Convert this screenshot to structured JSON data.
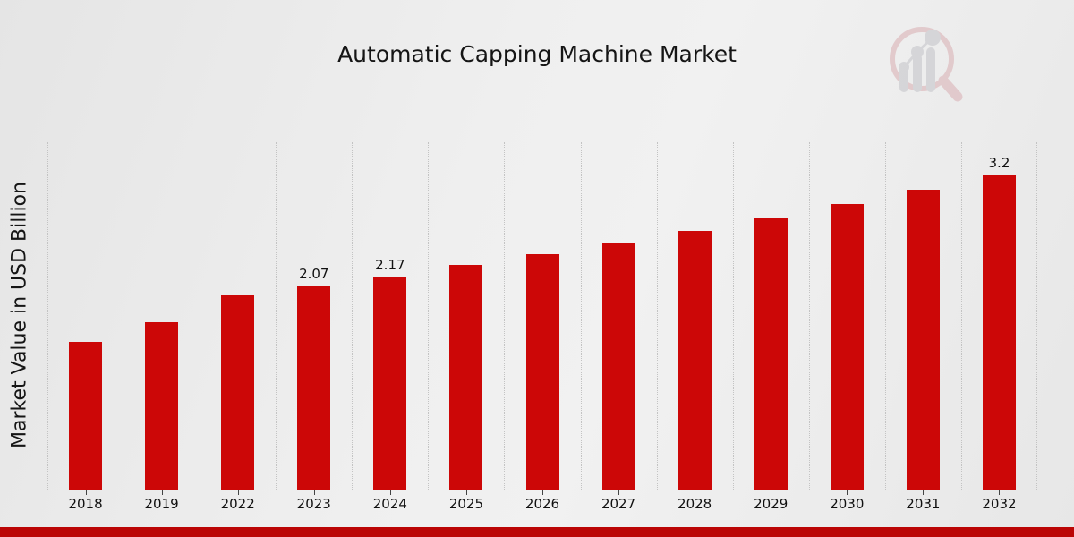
{
  "header": {
    "title": "Automatic Capping Machine Market"
  },
  "watermark": {
    "name": "market-research-future-logo",
    "ring_color": "#d9aeb2",
    "bars_color": "#c3c3c8"
  },
  "chart_data": {
    "type": "bar",
    "title": "Automatic Capping Machine Market",
    "xlabel": "",
    "ylabel": "Market Value in USD Billion",
    "categories": [
      "2018",
      "2019",
      "2022",
      "2023",
      "2024",
      "2025",
      "2026",
      "2027",
      "2028",
      "2029",
      "2030",
      "2031",
      "2032"
    ],
    "values": [
      1.5,
      1.7,
      1.97,
      2.07,
      2.17,
      2.28,
      2.39,
      2.51,
      2.63,
      2.76,
      2.9,
      3.05,
      3.2
    ],
    "bar_labels": [
      "",
      "",
      "",
      "2.07",
      "2.17",
      "",
      "",
      "",
      "",
      "",
      "",
      "",
      "3.2"
    ],
    "ylim": [
      0,
      3.53
    ],
    "grid": "vertical-dotted",
    "legend": "none",
    "bar_color": "#cc0707",
    "axis_line_color": "#a8a8a8",
    "stripe_color": "#bb0505"
  }
}
